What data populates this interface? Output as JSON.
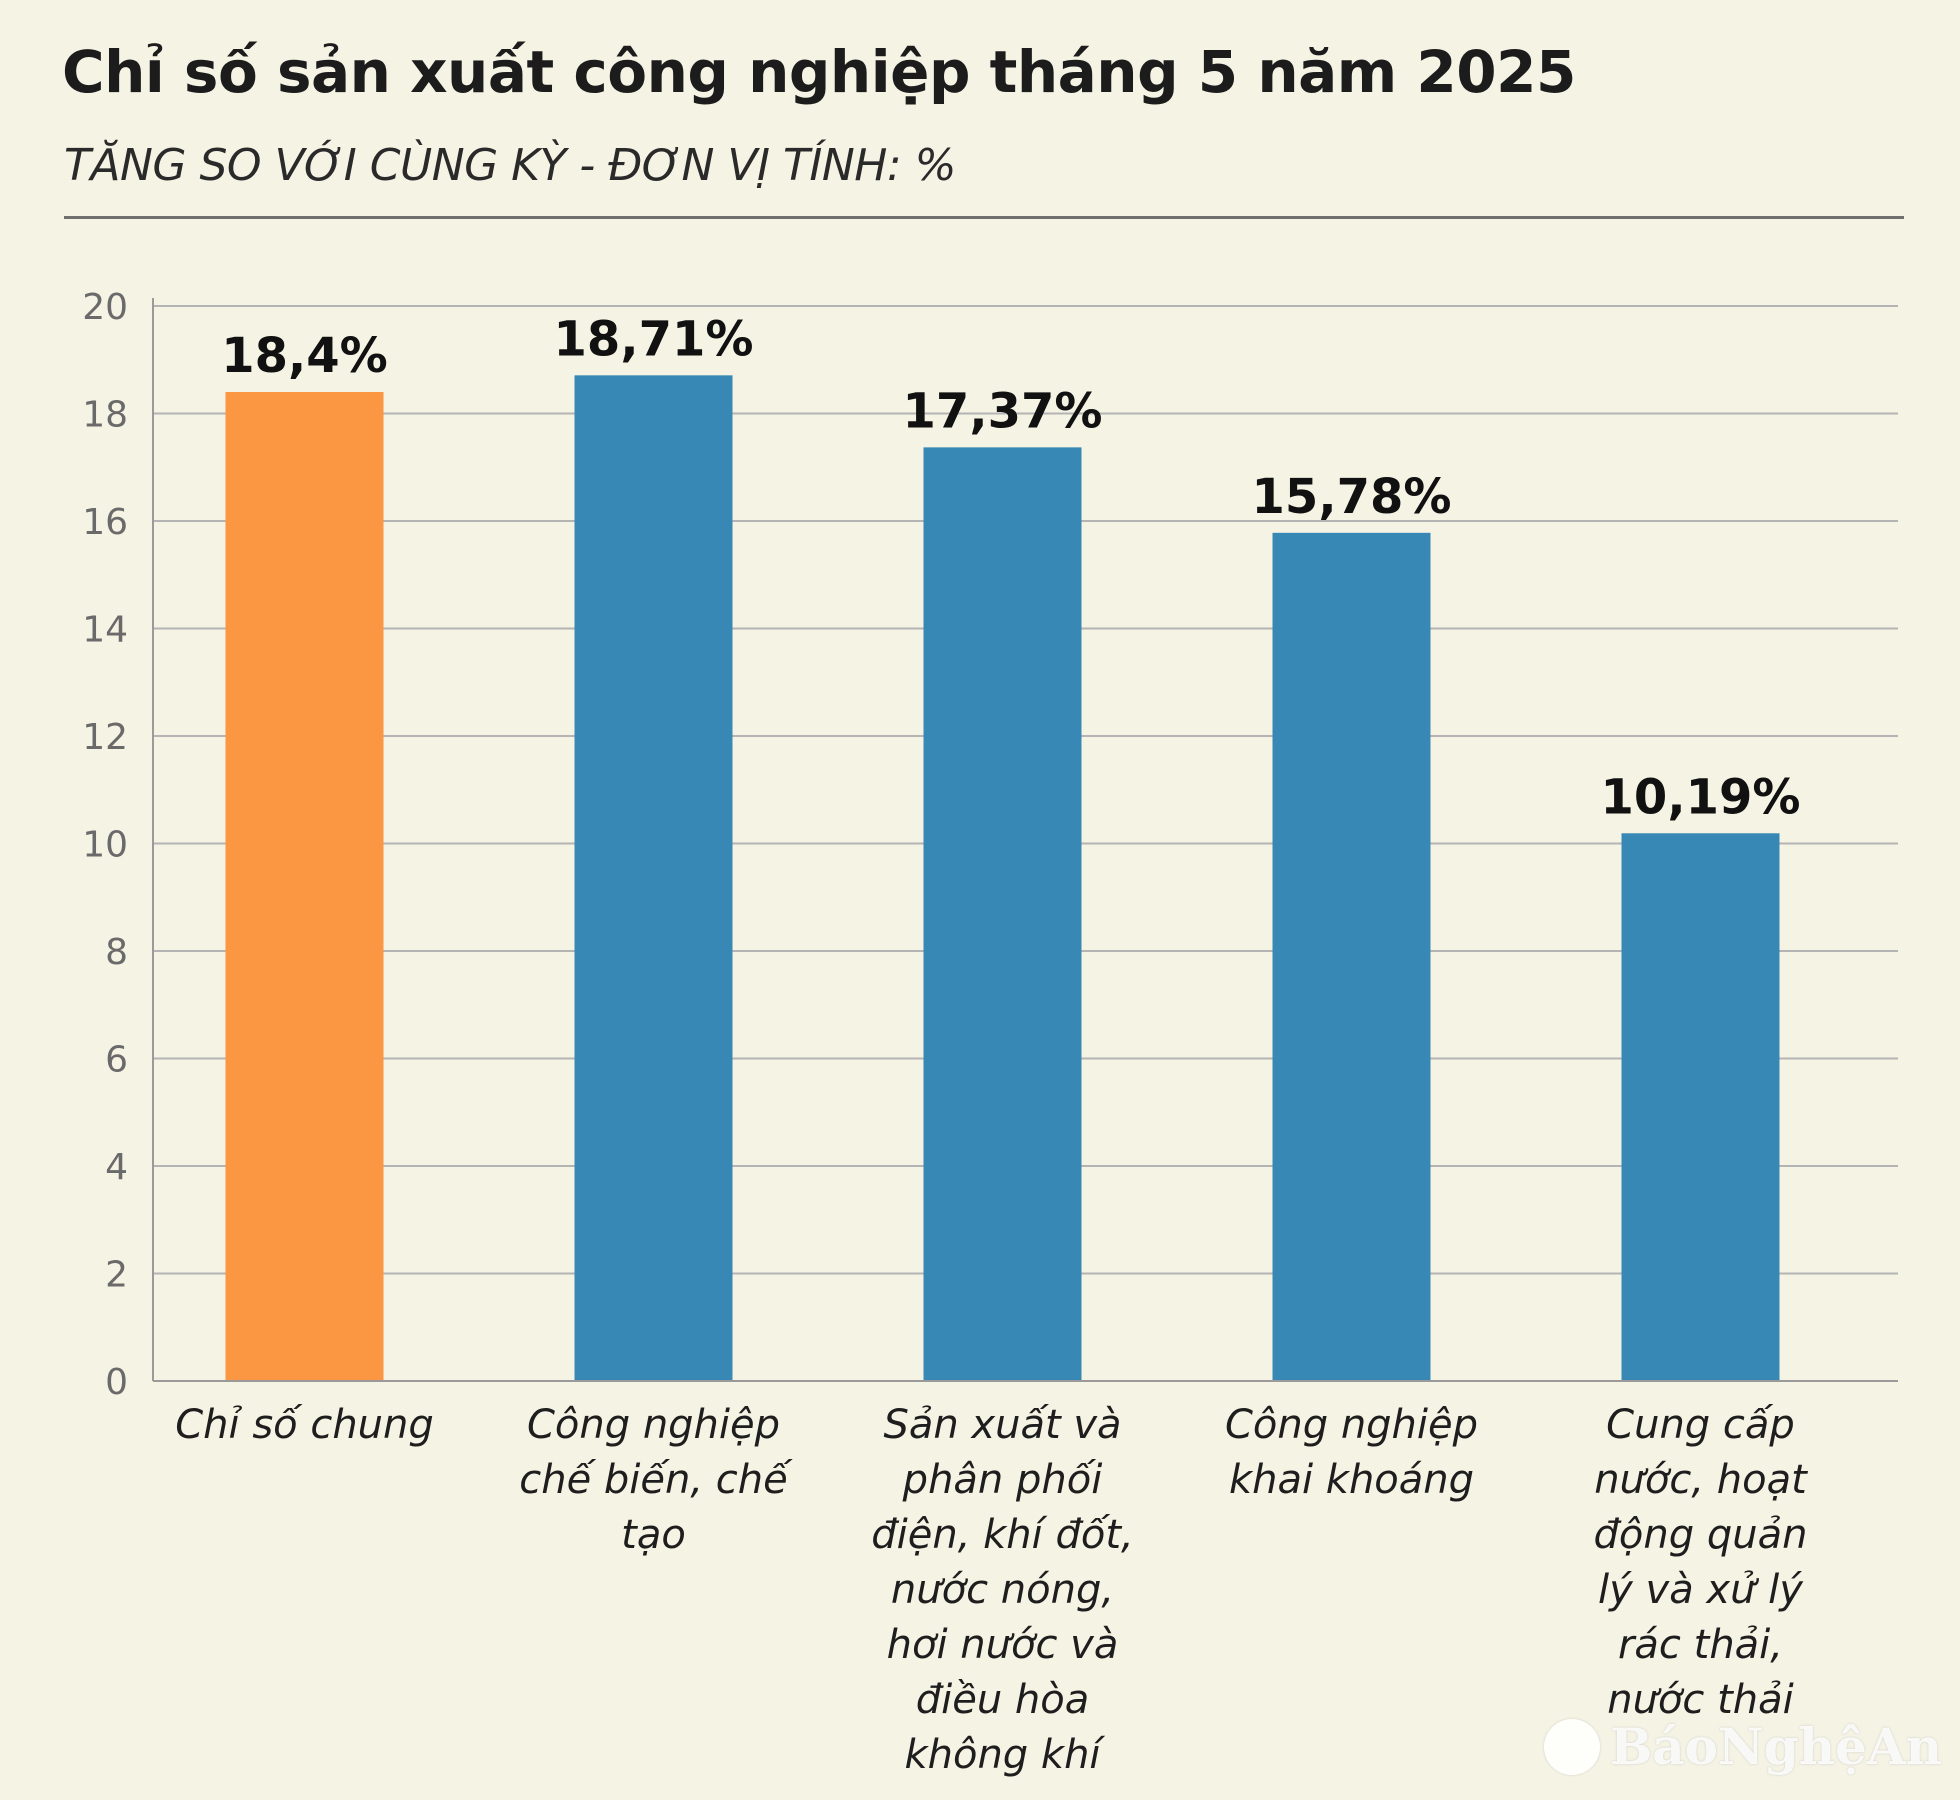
{
  "header": {
    "title": "Chỉ số sản xuất công nghiệp tháng 5 năm 2025",
    "subtitle": "TĂNG SO VỚI CÙNG KỲ - ĐƠN VỊ TÍNH: %"
  },
  "chart_data": {
    "type": "bar",
    "title": "Chỉ số sản xuất công nghiệp tháng 5 năm 2025",
    "subtitle": "TĂNG SO VỚI CÙNG KỲ - ĐƠN VỊ TÍNH: %",
    "categories": [
      [
        "Chỉ số chung"
      ],
      [
        "Công nghiệp",
        "chế biến, chế",
        "tạo"
      ],
      [
        "Sản xuất và",
        "phân phối",
        "điện, khí đốt,",
        "nước nóng,",
        "hơi nước và",
        "điều hòa",
        "không khí"
      ],
      [
        "Công nghiệp",
        "khai khoáng"
      ],
      [
        "Cung cấp",
        "nước, hoạt",
        "động quản",
        "lý và xử lý",
        "rác thải,",
        "nước thải"
      ]
    ],
    "values": [
      18.4,
      18.71,
      17.37,
      15.78,
      10.19
    ],
    "value_labels": [
      "18,4%",
      "18,71%",
      "17,37%",
      "15,78%",
      "10,19%"
    ],
    "bar_colors": [
      "#fb9642",
      "#3788b5",
      "#3788b5",
      "#3788b5",
      "#3788b5"
    ],
    "ylim": [
      0,
      20
    ],
    "yticks": [
      0,
      2,
      4,
      6,
      8,
      10,
      12,
      14,
      16,
      18,
      20
    ],
    "grid": true,
    "legend": "none"
  },
  "watermark": {
    "text": "BáoNghệAn"
  }
}
